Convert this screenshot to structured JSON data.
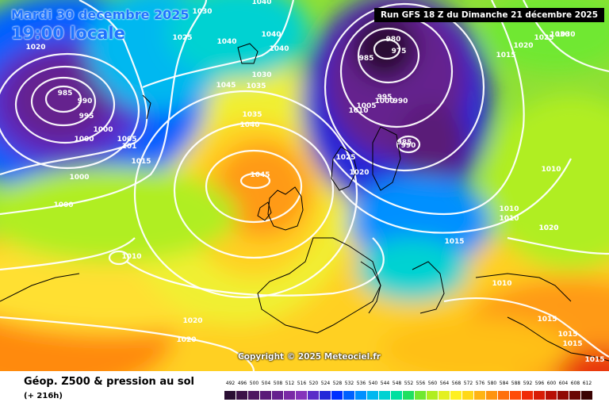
{
  "map": {
    "date_label": "Mardi 30 decembre 2025",
    "time_label": "19:00 locale",
    "run_label": "Run GFS 18 Z du Dimanche 21 décembre 2025",
    "copyright": "Copyright © 2025 Meteociel.fr",
    "pressure_labels": [
      "1040",
      "1030",
      "1020",
      "1025",
      "1040",
      "1040",
      "1040",
      "1045",
      "1035",
      "1030",
      "1035",
      "1040",
      "985",
      "990",
      "995",
      "1000",
      "1000",
      "1005",
      "101",
      "1015",
      "1000",
      "1000",
      "1010",
      "1045",
      "1025",
      "1020",
      "1030",
      "980",
      "975",
      "985",
      "1010",
      "1005",
      "1000",
      "995",
      "990",
      "985",
      "990",
      "1025",
      "1020",
      "1030",
      "1015",
      "1020",
      "1010",
      "1010",
      "1010",
      "1020",
      "1015",
      "1010",
      "1015",
      "1015",
      "1015",
      "1015",
      "1020",
      "1020"
    ],
    "features": {
      "lows": [
        "Low pressure over Labrador Sea",
        "Low pressure over Scandinavia",
        "Low pressure over the Baltic"
      ],
      "highs": [
        "High pressure west of Ireland"
      ]
    }
  },
  "legend": {
    "title": "Géop. Z500 & pression au sol",
    "subtitle": "(+ 216h)",
    "labels": [
      "492",
      "496",
      "500",
      "504",
      "508",
      "512",
      "516",
      "520",
      "524",
      "528",
      "532",
      "536",
      "540",
      "544",
      "548",
      "552",
      "556",
      "560",
      "564",
      "568",
      "572",
      "576",
      "580",
      "584",
      "588",
      "592",
      "596",
      "600",
      "604",
      "608",
      "612"
    ],
    "colors": [
      "#2a0f33",
      "#3c1248",
      "#4d1760",
      "#5a1a78",
      "#65208e",
      "#7a2aa6",
      "#8533bb",
      "#5a2cc8",
      "#2228d8",
      "#0030ff",
      "#0060ff",
      "#0090ff",
      "#00b8f0",
      "#00d2d2",
      "#00e0a0",
      "#20e060",
      "#70e830",
      "#b0ee20",
      "#e4f020",
      "#fff020",
      "#ffd818",
      "#ffb414",
      "#ff9410",
      "#ff700c",
      "#ff4c08",
      "#f02a06",
      "#d81c06",
      "#b81006",
      "#900a04",
      "#6a0604",
      "#3a0202"
    ]
  }
}
